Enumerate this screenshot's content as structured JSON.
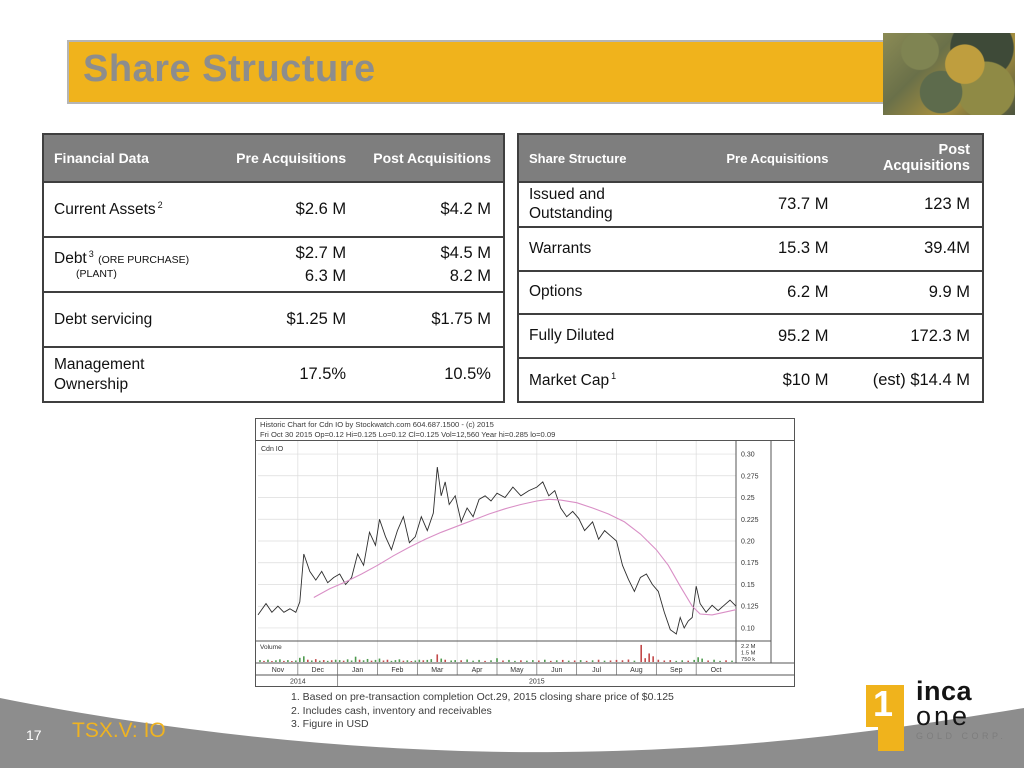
{
  "slide": {
    "title": "Share Structure",
    "page_number": "17",
    "ticker": "TSX.V: IO"
  },
  "colors": {
    "accent_gold": "#f0b31c",
    "title_gray": "#8d8d8d",
    "table_header_bg": "#7e7e7e",
    "swoosh_gray": "#8d8d8d",
    "price_line": "#2e2e2e",
    "moving_average": "#d98fc6",
    "volume_up": "#4f9a4f",
    "volume_down": "#c24848"
  },
  "financial_table": {
    "col_headers": [
      "Financial Data",
      "Pre Acquisitions",
      "Post Acquisitions"
    ],
    "rows": [
      {
        "label": "Current Assets",
        "sup": "2",
        "note1": "",
        "note2": "",
        "pre1": "$2.6 M",
        "pre2": "",
        "post1": "$4.2 M",
        "post2": ""
      },
      {
        "label": "Debt",
        "sup": "3",
        "note1": "(ORE PURCHASE)",
        "note2": "(PLANT)",
        "pre1": "$2.7 M",
        "pre2": "6.3 M",
        "post1": "$4.5 M",
        "post2": "8.2 M"
      },
      {
        "label": "Debt servicing",
        "sup": "",
        "note1": "",
        "note2": "",
        "pre1": "$1.25 M",
        "pre2": "",
        "post1": "$1.75 M",
        "post2": ""
      },
      {
        "label": "Management Ownership",
        "sup": "",
        "note1": "",
        "note2": "",
        "pre1": "17.5%",
        "pre2": "",
        "post1": "10.5%",
        "post2": ""
      }
    ]
  },
  "share_table": {
    "col_headers": [
      "Share Structure",
      "Pre Acquisitions",
      "Post Acquisitions"
    ],
    "rows": [
      {
        "label": "Issued and Outstanding",
        "sup": "",
        "pre": "73.7 M",
        "post": "123 M"
      },
      {
        "label": "Warrants",
        "sup": "",
        "pre": "15.3 M",
        "post": "39.4M"
      },
      {
        "label": "Options",
        "sup": "",
        "pre": "6.2 M",
        "post": "9.9 M"
      },
      {
        "label": "Fully Diluted",
        "sup": "",
        "pre": "95.2 M",
        "post": "172.3 M"
      },
      {
        "label": "Market Cap",
        "sup": "1",
        "pre": "$10 M",
        "post": "(est) $14.4 M"
      }
    ]
  },
  "footnotes": [
    "1. Based on pre-transaction completion Oct.29, 2015 closing share price of $0.125",
    "2. Includes cash, inventory and receivables",
    "3. Figure in USD"
  ],
  "logo": {
    "mark_numeral": "1",
    "line1": "inca",
    "line2": "one",
    "line3": "GOLD CORP."
  },
  "chart_data": {
    "type": "line",
    "title_line1": "Historic Chart for Cdn IO by  Stockwatch.com 604.687.1500 - (c) 2015",
    "title_line2": "Fri Oct 30 2015  Op=0.12  Hi=0.125  Lo=0.12  Cl=0.125  Vol=12,560  Year hi=0.285  lo=0.09",
    "series_label": "Cdn IO",
    "volume_label": "Volume",
    "ylim": [
      0.085,
      0.315
    ],
    "y_tick_labels": [
      "0.30",
      "0.275",
      "0.25",
      "0.225",
      "0.20",
      "0.175",
      "0.15",
      "0.125",
      "0.10"
    ],
    "volume_axis_labels": [
      "2.2 M",
      "1.5 M",
      "750 k"
    ],
    "x_months": [
      "Nov",
      "Dec",
      "Jan",
      "Feb",
      "Mar",
      "Apr",
      "May",
      "Jun",
      "Jul",
      "Aug",
      "Sep",
      "Oct"
    ],
    "x_years": [
      {
        "label": "2014",
        "start": 0,
        "end": 2
      },
      {
        "label": "2015",
        "start": 2,
        "end": 12
      }
    ],
    "series": [
      {
        "name": "price",
        "color": "#2e2e2e",
        "width": 0.9,
        "points": [
          [
            0,
            0.115
          ],
          [
            0.2,
            0.128
          ],
          [
            0.35,
            0.118
          ],
          [
            0.5,
            0.125
          ],
          [
            0.65,
            0.118
          ],
          [
            0.8,
            0.122
          ],
          [
            0.95,
            0.118
          ],
          [
            1.05,
            0.13
          ],
          [
            1.15,
            0.185
          ],
          [
            1.3,
            0.165
          ],
          [
            1.45,
            0.155
          ],
          [
            1.6,
            0.165
          ],
          [
            1.75,
            0.152
          ],
          [
            1.9,
            0.158
          ],
          [
            2.05,
            0.162
          ],
          [
            2.2,
            0.15
          ],
          [
            2.35,
            0.158
          ],
          [
            2.5,
            0.185
          ],
          [
            2.65,
            0.172
          ],
          [
            2.8,
            0.21
          ],
          [
            2.95,
            0.195
          ],
          [
            3.05,
            0.225
          ],
          [
            3.2,
            0.205
          ],
          [
            3.35,
            0.19
          ],
          [
            3.5,
            0.212
          ],
          [
            3.65,
            0.228
          ],
          [
            3.8,
            0.198
          ],
          [
            3.95,
            0.205
          ],
          [
            4.1,
            0.228
          ],
          [
            4.25,
            0.212
          ],
          [
            4.4,
            0.232
          ],
          [
            4.5,
            0.285
          ],
          [
            4.6,
            0.252
          ],
          [
            4.7,
            0.268
          ],
          [
            4.8,
            0.242
          ],
          [
            4.95,
            0.252
          ],
          [
            5.1,
            0.222
          ],
          [
            5.25,
            0.238
          ],
          [
            5.4,
            0.228
          ],
          [
            5.55,
            0.248
          ],
          [
            5.7,
            0.252
          ],
          [
            5.85,
            0.246
          ],
          [
            6.0,
            0.255
          ],
          [
            6.2,
            0.25
          ],
          [
            6.4,
            0.262
          ],
          [
            6.6,
            0.252
          ],
          [
            6.8,
            0.258
          ],
          [
            7.0,
            0.262
          ],
          [
            7.15,
            0.268
          ],
          [
            7.3,
            0.252
          ],
          [
            7.45,
            0.258
          ],
          [
            7.6,
            0.238
          ],
          [
            7.75,
            0.228
          ],
          [
            7.9,
            0.234
          ],
          [
            8.05,
            0.226
          ],
          [
            8.2,
            0.212
          ],
          [
            8.4,
            0.222
          ],
          [
            8.55,
            0.202
          ],
          [
            8.7,
            0.212
          ],
          [
            8.85,
            0.206
          ],
          [
            9.0,
            0.2
          ],
          [
            9.15,
            0.172
          ],
          [
            9.3,
            0.156
          ],
          [
            9.45,
            0.142
          ],
          [
            9.6,
            0.158
          ],
          [
            9.75,
            0.162
          ],
          [
            9.9,
            0.15
          ],
          [
            10.05,
            0.142
          ],
          [
            10.2,
            0.118
          ],
          [
            10.35,
            0.098
          ],
          [
            10.5,
            0.093
          ],
          [
            10.6,
            0.112
          ],
          [
            10.7,
            0.1
          ],
          [
            10.8,
            0.108
          ],
          [
            10.9,
            0.112
          ],
          [
            11.0,
            0.148
          ],
          [
            11.1,
            0.128
          ],
          [
            11.25,
            0.118
          ],
          [
            11.4,
            0.126
          ],
          [
            11.55,
            0.12
          ],
          [
            11.7,
            0.126
          ],
          [
            11.85,
            0.132
          ],
          [
            12,
            0.125
          ]
        ]
      },
      {
        "name": "moving_average",
        "color": "#d98fc6",
        "width": 1.1,
        "points": [
          [
            1.4,
            0.135
          ],
          [
            1.8,
            0.145
          ],
          [
            2.2,
            0.153
          ],
          [
            2.6,
            0.162
          ],
          [
            3.0,
            0.172
          ],
          [
            3.4,
            0.183
          ],
          [
            3.8,
            0.193
          ],
          [
            4.2,
            0.202
          ],
          [
            4.6,
            0.21
          ],
          [
            5.0,
            0.217
          ],
          [
            5.4,
            0.224
          ],
          [
            5.8,
            0.231
          ],
          [
            6.2,
            0.237
          ],
          [
            6.6,
            0.242
          ],
          [
            7.0,
            0.246
          ],
          [
            7.3,
            0.248
          ],
          [
            7.6,
            0.247
          ],
          [
            8.0,
            0.244
          ],
          [
            8.4,
            0.238
          ],
          [
            8.8,
            0.231
          ],
          [
            9.2,
            0.222
          ],
          [
            9.6,
            0.208
          ],
          [
            10.0,
            0.19
          ],
          [
            10.3,
            0.172
          ],
          [
            10.6,
            0.148
          ],
          [
            10.9,
            0.125
          ],
          [
            11.1,
            0.116
          ],
          [
            11.4,
            0.115
          ],
          [
            11.7,
            0.118
          ],
          [
            12,
            0.121
          ]
        ]
      }
    ],
    "volume_bars": [
      [
        0.05,
        0.1,
        "g"
      ],
      [
        0.15,
        0.06,
        "r"
      ],
      [
        0.25,
        0.12,
        "g"
      ],
      [
        0.35,
        0.05,
        "r"
      ],
      [
        0.45,
        0.09,
        "g"
      ],
      [
        0.55,
        0.14,
        "g"
      ],
      [
        0.65,
        0.06,
        "r"
      ],
      [
        0.75,
        0.1,
        "g"
      ],
      [
        0.85,
        0.05,
        "r"
      ],
      [
        0.95,
        0.08,
        "g"
      ],
      [
        1.05,
        0.22,
        "g"
      ],
      [
        1.15,
        0.3,
        "g"
      ],
      [
        1.25,
        0.12,
        "r"
      ],
      [
        1.35,
        0.08,
        "g"
      ],
      [
        1.45,
        0.15,
        "r"
      ],
      [
        1.55,
        0.07,
        "g"
      ],
      [
        1.65,
        0.1,
        "r"
      ],
      [
        1.75,
        0.06,
        "g"
      ],
      [
        1.85,
        0.09,
        "r"
      ],
      [
        1.95,
        0.12,
        "g"
      ],
      [
        2.05,
        0.1,
        "g"
      ],
      [
        2.15,
        0.07,
        "r"
      ],
      [
        2.25,
        0.14,
        "g"
      ],
      [
        2.35,
        0.08,
        "g"
      ],
      [
        2.45,
        0.28,
        "g"
      ],
      [
        2.55,
        0.12,
        "r"
      ],
      [
        2.65,
        0.09,
        "g"
      ],
      [
        2.75,
        0.16,
        "g"
      ],
      [
        2.85,
        0.07,
        "r"
      ],
      [
        2.95,
        0.11,
        "g"
      ],
      [
        3.05,
        0.18,
        "g"
      ],
      [
        3.15,
        0.08,
        "r"
      ],
      [
        3.25,
        0.12,
        "r"
      ],
      [
        3.35,
        0.06,
        "g"
      ],
      [
        3.45,
        0.1,
        "g"
      ],
      [
        3.55,
        0.14,
        "g"
      ],
      [
        3.65,
        0.07,
        "r"
      ],
      [
        3.75,
        0.09,
        "g"
      ],
      [
        3.85,
        0.05,
        "r"
      ],
      [
        3.95,
        0.08,
        "g"
      ],
      [
        4.05,
        0.12,
        "g"
      ],
      [
        4.15,
        0.09,
        "r"
      ],
      [
        4.25,
        0.11,
        "g"
      ],
      [
        4.35,
        0.15,
        "g"
      ],
      [
        4.5,
        0.4,
        "r"
      ],
      [
        4.6,
        0.18,
        "g"
      ],
      [
        4.7,
        0.12,
        "r"
      ],
      [
        4.85,
        0.08,
        "g"
      ],
      [
        4.95,
        0.1,
        "g"
      ],
      [
        5.1,
        0.09,
        "r"
      ],
      [
        5.25,
        0.13,
        "g"
      ],
      [
        5.4,
        0.07,
        "g"
      ],
      [
        5.55,
        0.11,
        "g"
      ],
      [
        5.7,
        0.06,
        "r"
      ],
      [
        5.85,
        0.09,
        "g"
      ],
      [
        6.0,
        0.2,
        "g"
      ],
      [
        6.15,
        0.08,
        "r"
      ],
      [
        6.3,
        0.11,
        "g"
      ],
      [
        6.45,
        0.06,
        "g"
      ],
      [
        6.6,
        0.09,
        "r"
      ],
      [
        6.75,
        0.07,
        "g"
      ],
      [
        6.9,
        0.1,
        "g"
      ],
      [
        7.05,
        0.08,
        "r"
      ],
      [
        7.2,
        0.12,
        "g"
      ],
      [
        7.35,
        0.06,
        "r"
      ],
      [
        7.5,
        0.09,
        "g"
      ],
      [
        7.65,
        0.11,
        "r"
      ],
      [
        7.8,
        0.07,
        "g"
      ],
      [
        7.95,
        0.08,
        "r"
      ],
      [
        8.1,
        0.1,
        "g"
      ],
      [
        8.25,
        0.06,
        "r"
      ],
      [
        8.4,
        0.09,
        "g"
      ],
      [
        8.55,
        0.12,
        "r"
      ],
      [
        8.7,
        0.07,
        "g"
      ],
      [
        8.85,
        0.08,
        "r"
      ],
      [
        9.0,
        0.11,
        "r"
      ],
      [
        9.15,
        0.09,
        "r"
      ],
      [
        9.3,
        0.13,
        "r"
      ],
      [
        9.45,
        0.07,
        "g"
      ],
      [
        9.62,
        0.9,
        "r"
      ],
      [
        9.72,
        0.2,
        "r"
      ],
      [
        9.82,
        0.45,
        "r"
      ],
      [
        9.92,
        0.3,
        "r"
      ],
      [
        10.05,
        0.12,
        "r"
      ],
      [
        10.2,
        0.08,
        "r"
      ],
      [
        10.35,
        0.1,
        "r"
      ],
      [
        10.5,
        0.06,
        "g"
      ],
      [
        10.65,
        0.09,
        "g"
      ],
      [
        10.8,
        0.07,
        "r"
      ],
      [
        10.95,
        0.11,
        "g"
      ],
      [
        11.05,
        0.25,
        "g"
      ],
      [
        11.15,
        0.18,
        "g"
      ],
      [
        11.3,
        0.08,
        "r"
      ],
      [
        11.45,
        0.12,
        "g"
      ],
      [
        11.6,
        0.06,
        "g"
      ],
      [
        11.75,
        0.09,
        "r"
      ],
      [
        11.9,
        0.07,
        "g"
      ]
    ]
  }
}
